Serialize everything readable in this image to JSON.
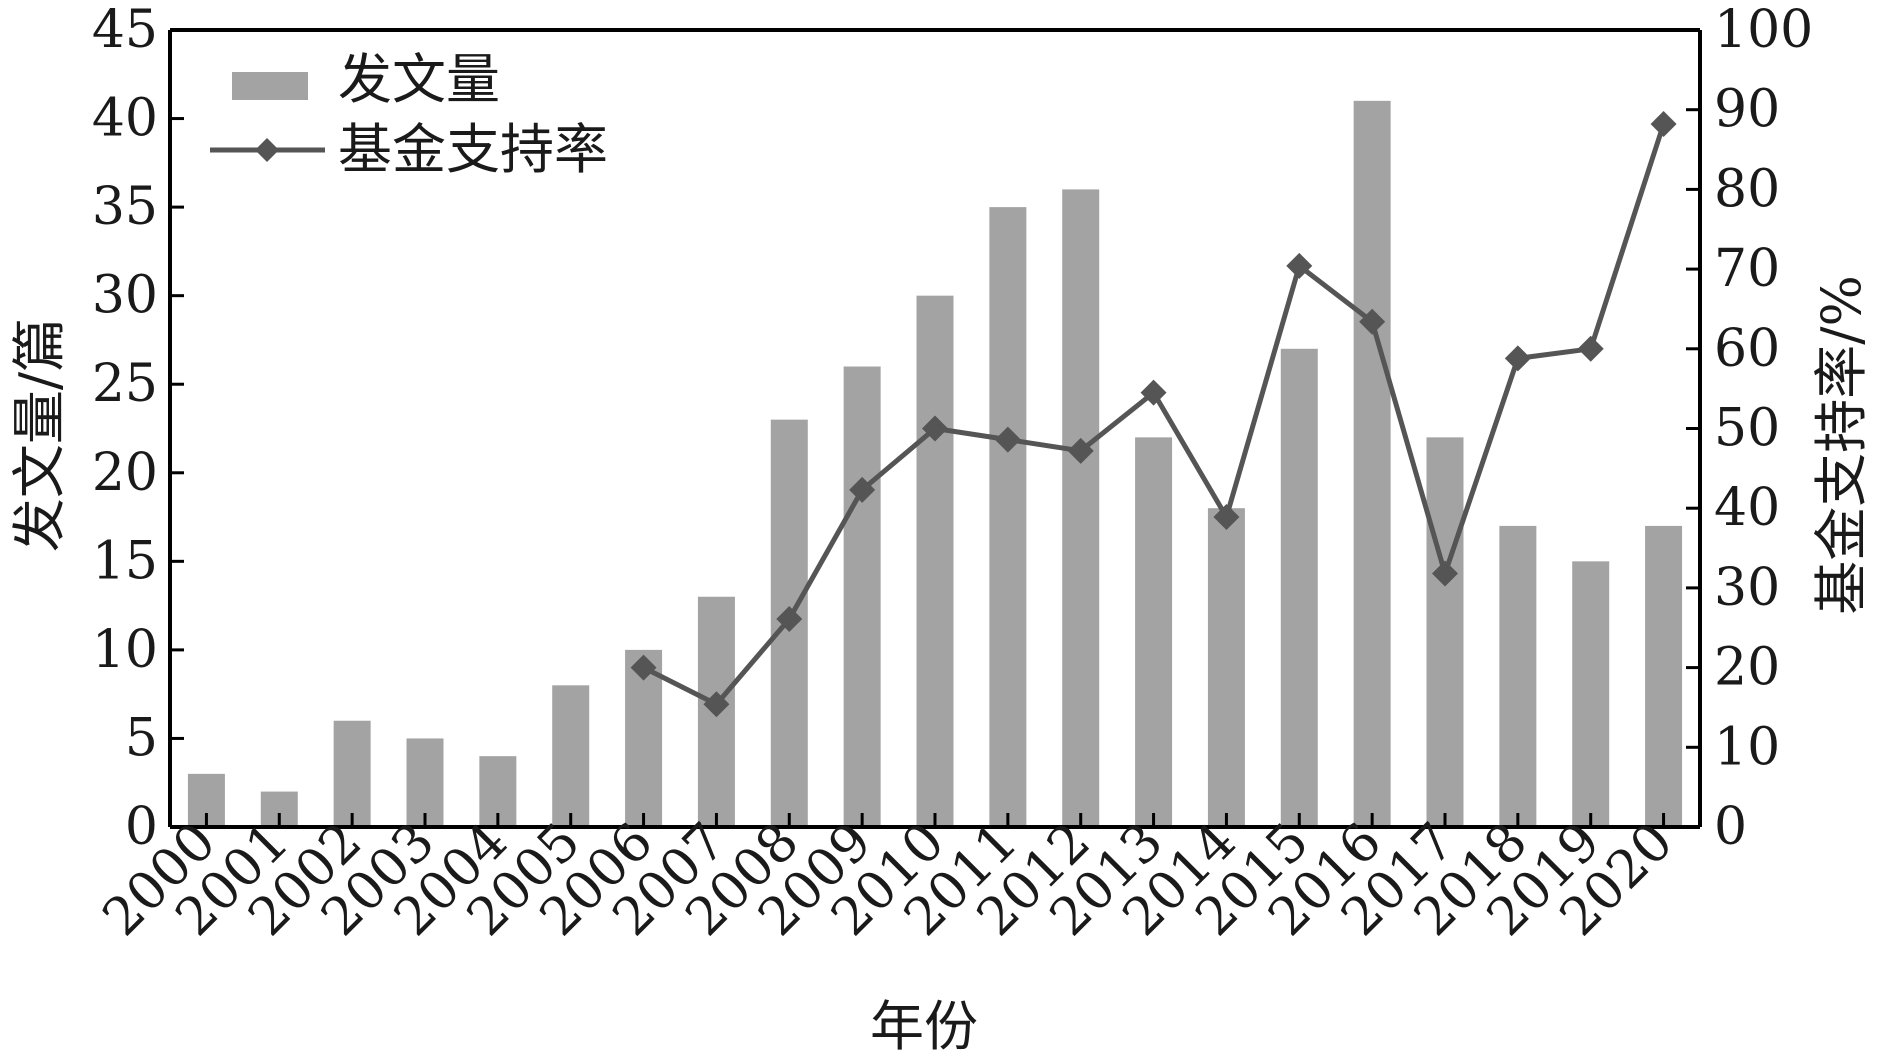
{
  "chart_data": {
    "type": "bar",
    "categories": [
      "2000",
      "2001",
      "2002",
      "2003",
      "2004",
      "2005",
      "2006",
      "2007",
      "2008",
      "2009",
      "2010",
      "2011",
      "2012",
      "2013",
      "2014",
      "2015",
      "2016",
      "2017",
      "2018",
      "2019",
      "2020"
    ],
    "series": [
      {
        "name": "发文量",
        "type": "bar",
        "axis": "left",
        "color": "#a3a3a3",
        "values": [
          3,
          2,
          6,
          5,
          4,
          8,
          10,
          13,
          23,
          26,
          30,
          35,
          36,
          22,
          18,
          27,
          41,
          22,
          17,
          15,
          17
        ]
      },
      {
        "name": "基金支持率",
        "type": "line",
        "axis": "right",
        "color": "#555555",
        "marker": "diamond",
        "points": [
          {
            "x": "2006",
            "y": 20
          },
          {
            "x": "2007",
            "y": 15.4
          },
          {
            "x": "2008",
            "y": 26.1
          },
          {
            "x": "2009",
            "y": 42.3
          },
          {
            "x": "2010",
            "y": 50
          },
          {
            "x": "2011",
            "y": 48.6
          },
          {
            "x": "2012",
            "y": 47.2
          },
          {
            "x": "2013",
            "y": 54.5
          },
          {
            "x": "2014",
            "y": 38.9
          },
          {
            "x": "2015",
            "y": 70.4
          },
          {
            "x": "2016",
            "y": 63.4
          },
          {
            "x": "2017",
            "y": 31.8
          },
          {
            "x": "2018",
            "y": 58.8
          },
          {
            "x": "2019",
            "y": 60
          },
          {
            "x": "2020",
            "y": 88.2
          }
        ]
      }
    ],
    "xlabel": "年份",
    "ylabel": "发文量/篇",
    "y2label": "基金支持率/%",
    "ylim": [
      0,
      45
    ],
    "y2lim": [
      0,
      100
    ],
    "yticks": [
      "0",
      "5",
      "10",
      "15",
      "20",
      "25",
      "30",
      "35",
      "40",
      "45"
    ],
    "y2ticks": [
      "0",
      "10",
      "20",
      "30",
      "40",
      "50",
      "60",
      "70",
      "80",
      "90",
      "100"
    ],
    "grid": false,
    "legend_position": "top-left"
  }
}
